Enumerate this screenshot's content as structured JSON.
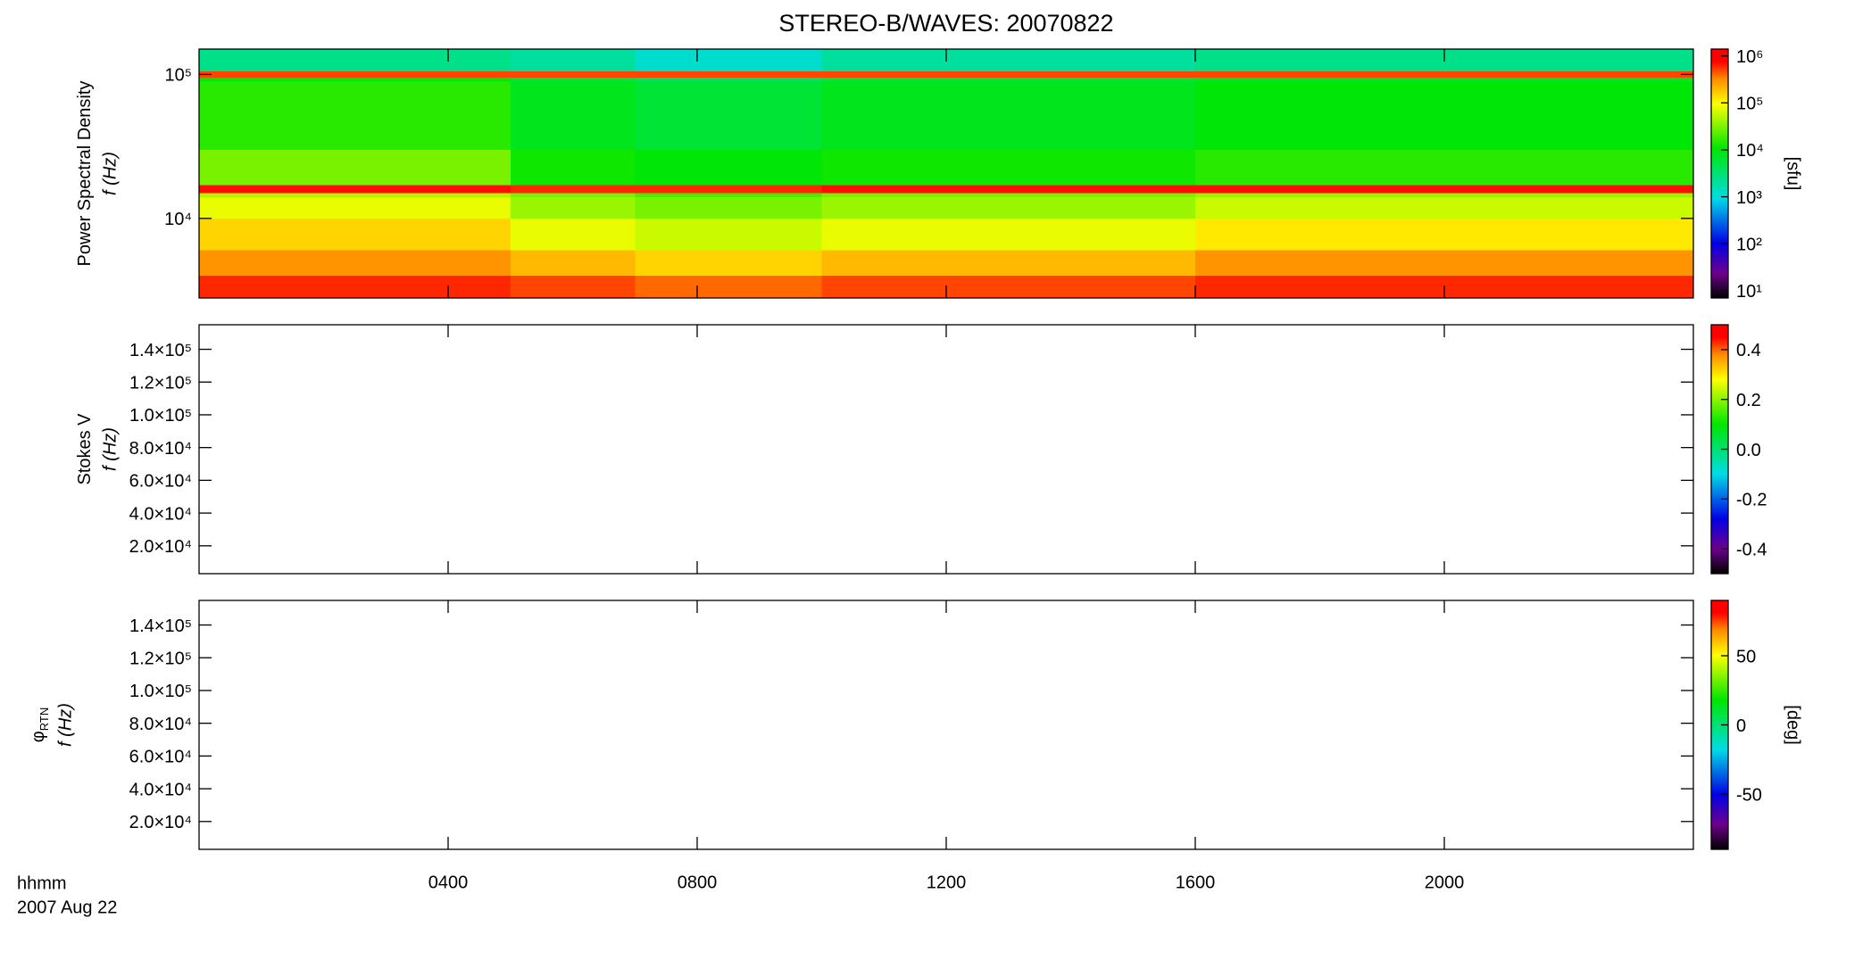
{
  "chart_data": [
    {
      "type": "heatmap",
      "title": "STEREO-B/WAVES: 20070822",
      "ylabel": "Power Spectral Density",
      "ylabel2": "f (Hz)",
      "ylog": true,
      "xlim": [
        0,
        24
      ],
      "ylim": [
        2800,
        150000
      ],
      "yticks": [
        {
          "value": 10000,
          "label": "10⁴"
        },
        {
          "value": 100000,
          "label": "10⁵"
        }
      ],
      "xticks": [
        4,
        8,
        12,
        16,
        20
      ],
      "x_edges": [
        0,
        5,
        7,
        10,
        16,
        24
      ],
      "y_edges": [
        2800,
        4000,
        6000,
        10000,
        14000,
        15000,
        17000,
        30000,
        90000,
        95000,
        105000,
        150000
      ],
      "z": [
        [
          600000,
          500000,
          400000,
          500000,
          600000
        ],
        [
          300000,
          200000,
          150000,
          200000,
          300000
        ],
        [
          150000,
          80000,
          60000,
          80000,
          120000
        ],
        [
          80000,
          40000,
          30000,
          40000,
          60000
        ],
        [
          50000,
          30000,
          20000,
          30000,
          40000
        ],
        [
          700000,
          600000,
          600000,
          700000,
          700000
        ],
        [
          30000,
          12000,
          10000,
          12000,
          15000
        ],
        [
          15000,
          8000,
          6000,
          8000,
          10000
        ],
        [
          10000,
          6000,
          4000,
          6000,
          8000
        ],
        [
          500000,
          500000,
          500000,
          500000,
          500000
        ],
        [
          2500,
          2000,
          1200,
          2000,
          2500
        ]
      ],
      "colorbar": {
        "log": true,
        "lim": [
          7,
          1400000
        ],
        "label": "[sfu]",
        "ticks": [
          {
            "value": 10,
            "label": "10¹"
          },
          {
            "value": 100,
            "label": "10²"
          },
          {
            "value": 1000,
            "label": "10³"
          },
          {
            "value": 10000,
            "label": "10⁴"
          },
          {
            "value": 100000,
            "label": "10⁵"
          },
          {
            "value": 1000000,
            "label": "10⁶"
          }
        ]
      }
    },
    {
      "type": "heatmap",
      "ylabel": "Stokes V",
      "ylabel2": "f (Hz)",
      "ylog": false,
      "xlim": [
        0,
        24
      ],
      "ylim": [
        3000,
        155000
      ],
      "yticks": [
        {
          "value": 20000,
          "label": "2.0×10⁴"
        },
        {
          "value": 40000,
          "label": "4.0×10⁴"
        },
        {
          "value": 60000,
          "label": "6.0×10⁴"
        },
        {
          "value": 80000,
          "label": "8.0×10⁴"
        },
        {
          "value": 100000,
          "label": "1.0×10⁵"
        },
        {
          "value": 120000,
          "label": "1.2×10⁵"
        },
        {
          "value": 140000,
          "label": "1.4×10⁵"
        }
      ],
      "xticks": [
        4,
        8,
        12,
        16,
        20
      ],
      "colorbar": {
        "log": false,
        "lim": [
          -0.5,
          0.5
        ],
        "ticks": [
          -0.4,
          -0.2,
          {
            "value": 0,
            "label": "0.0"
          },
          0.2,
          0.4
        ]
      }
    },
    {
      "type": "heatmap",
      "ylabel": "φ",
      "ylabel_sub": "RTN",
      "ylabel2": "f (Hz)",
      "ylog": false,
      "xlim": [
        0,
        24
      ],
      "ylim": [
        3000,
        155000
      ],
      "yticks": [
        {
          "value": 20000,
          "label": "2.0×10⁴"
        },
        {
          "value": 40000,
          "label": "4.0×10⁴"
        },
        {
          "value": 60000,
          "label": "6.0×10⁴"
        },
        {
          "value": 80000,
          "label": "8.0×10⁴"
        },
        {
          "value": 100000,
          "label": "1.0×10⁵"
        },
        {
          "value": 120000,
          "label": "1.2×10⁵"
        },
        {
          "value": 140000,
          "label": "1.4×10⁵"
        }
      ],
      "xticks": [
        {
          "value": 4,
          "label": "0400"
        },
        {
          "value": 8,
          "label": "0800"
        },
        {
          "value": 12,
          "label": "1200"
        },
        {
          "value": 16,
          "label": "1600"
        },
        {
          "value": 20,
          "label": "2000"
        }
      ],
      "xlabel": "hhmm",
      "xlabel2": "2007 Aug 22",
      "colorbar": {
        "log": false,
        "lim": [
          -90,
          90
        ],
        "label": "[deg]",
        "ticks": [
          -50,
          0,
          50
        ]
      }
    }
  ]
}
